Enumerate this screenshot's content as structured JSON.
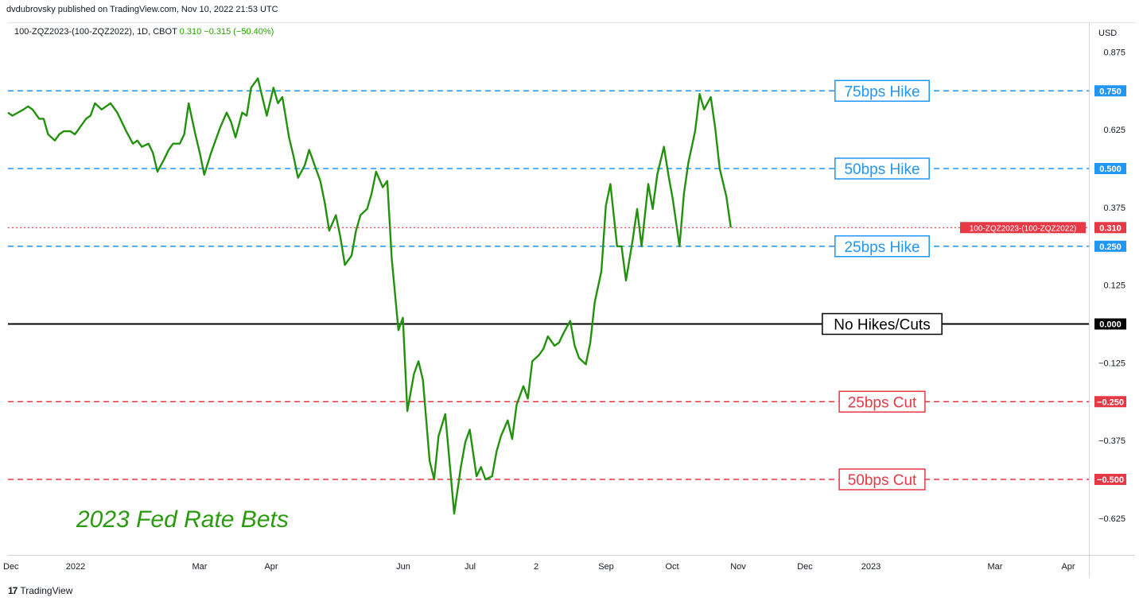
{
  "header": {
    "publisher": "dvdubrovsky published on TradingView.com, Nov 10, 2022 21:53 UTC",
    "symbol": "100-ZQZ2023-(100-ZQZ2022), 1D, CBOT",
    "last": "0.310",
    "change": "−0.315 (−50.40%)"
  },
  "currency": "USD",
  "footer": {
    "brand": "TradingView"
  },
  "colors": {
    "line": "#22910d",
    "hike": "#2196f3",
    "cut": "#e53946",
    "zero": "#000000",
    "current": "#e53946",
    "annotation_text": "#2a9a0f"
  },
  "chart_data": {
    "type": "line",
    "title": "2023 Fed Rate Bets",
    "xlabel": "",
    "ylabel": "",
    "ylim": [
      -0.7,
      0.95
    ],
    "yticks": [
      0.875,
      0.625,
      0.375,
      0.125,
      -0.125,
      -0.375,
      -0.625
    ],
    "xticks": [
      "Dec",
      "2022",
      "Mar",
      "Apr",
      "Jun",
      "Jul",
      "2",
      "Sep",
      "Oct",
      "Nov",
      "Dec",
      "2023",
      "Mar",
      "Apr"
    ],
    "grid": false,
    "series": [
      {
        "name": "100-ZQZ2023-(100-ZQZ2022)",
        "points": [
          [
            "2021-12-20",
            0.68
          ],
          [
            "2021-12-22",
            0.67
          ],
          [
            "2021-12-27",
            0.69
          ],
          [
            "2021-12-29",
            0.7
          ],
          [
            "2021-12-31",
            0.69
          ],
          [
            "2022-01-03",
            0.66
          ],
          [
            "2022-01-05",
            0.66
          ],
          [
            "2022-01-07",
            0.61
          ],
          [
            "2022-01-10",
            0.59
          ],
          [
            "2022-01-12",
            0.61
          ],
          [
            "2022-01-14",
            0.62
          ],
          [
            "2022-01-17",
            0.62
          ],
          [
            "2022-01-19",
            0.61
          ],
          [
            "2022-01-21",
            0.63
          ],
          [
            "2022-01-24",
            0.66
          ],
          [
            "2022-01-26",
            0.67
          ],
          [
            "2022-01-28",
            0.71
          ],
          [
            "2022-01-31",
            0.69
          ],
          [
            "2022-02-02",
            0.7
          ],
          [
            "2022-02-04",
            0.71
          ],
          [
            "2022-02-07",
            0.68
          ],
          [
            "2022-02-09",
            0.65
          ],
          [
            "2022-02-11",
            0.62
          ],
          [
            "2022-02-14",
            0.58
          ],
          [
            "2022-02-16",
            0.59
          ],
          [
            "2022-02-18",
            0.57
          ],
          [
            "2022-02-21",
            0.58
          ],
          [
            "2022-02-23",
            0.55
          ],
          [
            "2022-02-25",
            0.49
          ],
          [
            "2022-02-28",
            0.53
          ],
          [
            "2022-03-02",
            0.56
          ],
          [
            "2022-03-04",
            0.58
          ],
          [
            "2022-03-07",
            0.58
          ],
          [
            "2022-03-09",
            0.61
          ],
          [
            "2022-03-11",
            0.71
          ],
          [
            "2022-03-14",
            0.61
          ],
          [
            "2022-03-16",
            0.55
          ],
          [
            "2022-03-18",
            0.48
          ],
          [
            "2022-03-21",
            0.55
          ],
          [
            "2022-03-23",
            0.59
          ],
          [
            "2022-03-25",
            0.63
          ],
          [
            "2022-03-28",
            0.68
          ],
          [
            "2022-03-30",
            0.65
          ],
          [
            "2022-04-01",
            0.6
          ],
          [
            "2022-04-04",
            0.68
          ],
          [
            "2022-04-06",
            0.67
          ],
          [
            "2022-04-08",
            0.76
          ],
          [
            "2022-04-11",
            0.79
          ],
          [
            "2022-04-13",
            0.73
          ],
          [
            "2022-04-15",
            0.67
          ],
          [
            "2022-04-18",
            0.76
          ],
          [
            "2022-04-20",
            0.71
          ],
          [
            "2022-04-22",
            0.73
          ],
          [
            "2022-04-25",
            0.6
          ],
          [
            "2022-04-27",
            0.54
          ],
          [
            "2022-04-29",
            0.47
          ],
          [
            "2022-05-02",
            0.51
          ],
          [
            "2022-05-04",
            0.56
          ],
          [
            "2022-05-06",
            0.52
          ],
          [
            "2022-05-09",
            0.46
          ],
          [
            "2022-05-11",
            0.39
          ],
          [
            "2022-05-13",
            0.3
          ],
          [
            "2022-05-16",
            0.35
          ],
          [
            "2022-05-18",
            0.28
          ],
          [
            "2022-05-20",
            0.19
          ],
          [
            "2022-05-23",
            0.22
          ],
          [
            "2022-05-25",
            0.3
          ],
          [
            "2022-05-27",
            0.35
          ],
          [
            "2022-05-30",
            0.37
          ],
          [
            "2022-06-01",
            0.42
          ],
          [
            "2022-06-03",
            0.49
          ],
          [
            "2022-06-06",
            0.44
          ],
          [
            "2022-06-08",
            0.46
          ],
          [
            "2022-06-10",
            0.21
          ],
          [
            "2022-06-13",
            -0.02
          ],
          [
            "2022-06-15",
            0.02
          ],
          [
            "2022-06-17",
            -0.28
          ],
          [
            "2022-06-20",
            -0.16
          ],
          [
            "2022-06-22",
            -0.12
          ],
          [
            "2022-06-24",
            -0.18
          ],
          [
            "2022-06-27",
            -0.44
          ],
          [
            "2022-06-29",
            -0.5
          ],
          [
            "2022-07-01",
            -0.36
          ],
          [
            "2022-07-04",
            -0.29
          ],
          [
            "2022-07-06",
            -0.45
          ],
          [
            "2022-07-08",
            -0.61
          ],
          [
            "2022-07-11",
            -0.46
          ],
          [
            "2022-07-13",
            -0.38
          ],
          [
            "2022-07-15",
            -0.34
          ],
          [
            "2022-07-18",
            -0.49
          ],
          [
            "2022-07-20",
            -0.46
          ],
          [
            "2022-07-22",
            -0.5
          ],
          [
            "2022-07-25",
            -0.49
          ],
          [
            "2022-07-27",
            -0.41
          ],
          [
            "2022-07-29",
            -0.36
          ],
          [
            "2022-08-01",
            -0.31
          ],
          [
            "2022-08-03",
            -0.37
          ],
          [
            "2022-08-05",
            -0.26
          ],
          [
            "2022-08-08",
            -0.2
          ],
          [
            "2022-08-10",
            -0.24
          ],
          [
            "2022-08-12",
            -0.12
          ],
          [
            "2022-08-15",
            -0.1
          ],
          [
            "2022-08-17",
            -0.08
          ],
          [
            "2022-08-19",
            -0.04
          ],
          [
            "2022-08-22",
            -0.07
          ],
          [
            "2022-08-24",
            -0.06
          ],
          [
            "2022-08-26",
            -0.03
          ],
          [
            "2022-08-29",
            0.01
          ],
          [
            "2022-08-31",
            -0.07
          ],
          [
            "2022-09-02",
            -0.11
          ],
          [
            "2022-09-05",
            -0.13
          ],
          [
            "2022-09-07",
            -0.06
          ],
          [
            "2022-09-09",
            0.07
          ],
          [
            "2022-09-12",
            0.17
          ],
          [
            "2022-09-14",
            0.38
          ],
          [
            "2022-09-16",
            0.45
          ],
          [
            "2022-09-19",
            0.25
          ],
          [
            "2022-09-21",
            0.25
          ],
          [
            "2022-09-23",
            0.14
          ],
          [
            "2022-09-26",
            0.27
          ],
          [
            "2022-09-28",
            0.37
          ],
          [
            "2022-09-30",
            0.25
          ],
          [
            "2022-10-03",
            0.45
          ],
          [
            "2022-10-05",
            0.37
          ],
          [
            "2022-10-07",
            0.48
          ],
          [
            "2022-10-10",
            0.57
          ],
          [
            "2022-10-12",
            0.48
          ],
          [
            "2022-10-14",
            0.4
          ],
          [
            "2022-10-17",
            0.25
          ],
          [
            "2022-10-19",
            0.42
          ],
          [
            "2022-10-21",
            0.52
          ],
          [
            "2022-10-24",
            0.62
          ],
          [
            "2022-10-26",
            0.74
          ],
          [
            "2022-10-28",
            0.69
          ],
          [
            "2022-10-31",
            0.73
          ],
          [
            "2022-11-02",
            0.63
          ],
          [
            "2022-11-04",
            0.5
          ],
          [
            "2022-11-07",
            0.41
          ],
          [
            "2022-11-09",
            0.31
          ]
        ]
      }
    ],
    "hlines": [
      {
        "value": 0.75,
        "price_label": "0.750",
        "annotation": "75bps Hike",
        "kind": "hike"
      },
      {
        "value": 0.5,
        "price_label": "0.500",
        "annotation": "50bps Hike",
        "kind": "hike"
      },
      {
        "value": 0.25,
        "price_label": "0.250",
        "annotation": "25bps Hike",
        "kind": "hike"
      },
      {
        "value": 0.0,
        "price_label": "0.000",
        "annotation": "No Hikes/Cuts",
        "kind": "zero"
      },
      {
        "value": -0.25,
        "price_label": "−0.250",
        "annotation": "25bps Cut",
        "kind": "cut"
      },
      {
        "value": -0.5,
        "price_label": "−0.500",
        "annotation": "50bps Cut",
        "kind": "cut"
      }
    ],
    "current": {
      "value": 0.31,
      "price_label": "0.310",
      "series_label": "100-ZQZ2023-(100-ZQZ2022)"
    }
  }
}
